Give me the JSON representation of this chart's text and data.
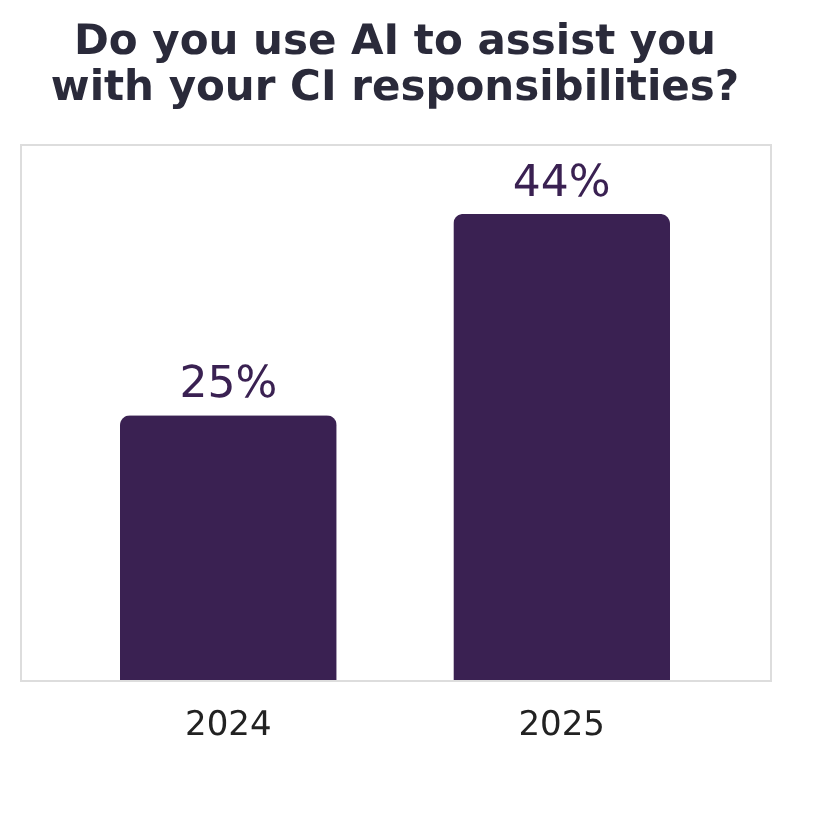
{
  "chart_data": {
    "type": "bar",
    "title": "Do you use AI to assist you with your CI responsibilities?",
    "categories": [
      "2024",
      "2025"
    ],
    "values": [
      25,
      44
    ],
    "color": "#3a2152",
    "data_labels": true,
    "value_labels": [
      "25%",
      "44%"
    ]
  }
}
